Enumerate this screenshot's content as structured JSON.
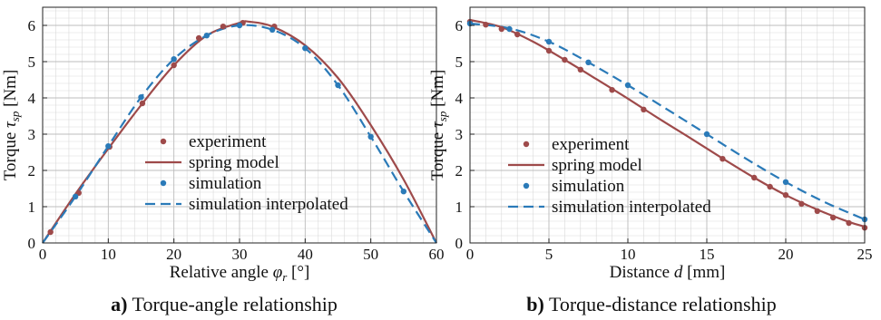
{
  "colors": {
    "experiment": "#9e4a4a",
    "spring_model": "#9e4a4a",
    "simulation": "#2a7ab8",
    "simulation_interpolated": "#2a7ab8"
  },
  "captions": {
    "a_prefix": "a)",
    "a_text": " Torque-angle relationship",
    "b_prefix": "b)",
    "b_text": " Torque-distance relationship"
  },
  "chart_data": [
    {
      "type": "line",
      "panel": "a",
      "xlabel_main": "Relative angle ",
      "xlabel_var": "φ",
      "xlabel_sub": "r",
      "xlabel_unit": " [°]",
      "ylabel_main": "Torque ",
      "ylabel_var": "τ",
      "ylabel_sub": "sp",
      "ylabel_unit": " [Nm]",
      "xlim": [
        0,
        60
      ],
      "ylim": [
        0,
        6.5
      ],
      "xticks": [
        0,
        10,
        20,
        30,
        40,
        50,
        60
      ],
      "yticks": [
        0,
        1,
        2,
        3,
        4,
        5,
        6
      ],
      "grid": true,
      "legend_position": "center",
      "series": [
        {
          "name": "experiment",
          "style": "marker",
          "color": "#9e4a4a",
          "x": [
            1.2,
            5.5,
            10.2,
            15.2,
            20,
            23.8,
            27.5,
            30.5,
            35.3
          ],
          "y": [
            0.3,
            1.38,
            2.65,
            3.85,
            4.9,
            5.65,
            5.97,
            6.07,
            5.97
          ]
        },
        {
          "name": "spring model",
          "style": "solid",
          "color": "#9e4a4a",
          "x": [
            0,
            5,
            10,
            15,
            20,
            25,
            30,
            31.5,
            35,
            40,
            45,
            50,
            55,
            60
          ],
          "y": [
            0,
            1.35,
            2.6,
            3.8,
            4.9,
            5.72,
            6.07,
            6.1,
            5.97,
            5.45,
            4.55,
            3.25,
            1.75,
            0
          ]
        },
        {
          "name": "simulation",
          "style": "marker",
          "color": "#2a7ab8",
          "x": [
            5,
            10,
            15,
            20,
            25,
            30,
            35,
            40,
            45,
            50,
            55
          ],
          "y": [
            1.28,
            2.67,
            4.02,
            5.07,
            5.72,
            6.0,
            5.88,
            5.37,
            4.35,
            2.93,
            1.42
          ]
        },
        {
          "name": "simulation interpolated",
          "style": "dashed",
          "color": "#2a7ab8",
          "x": [
            0,
            5,
            10,
            15,
            20,
            25,
            30,
            35,
            40,
            45,
            50,
            55,
            60
          ],
          "y": [
            0,
            1.28,
            2.67,
            4.02,
            5.07,
            5.72,
            6.0,
            5.88,
            5.37,
            4.35,
            2.93,
            1.42,
            0
          ]
        }
      ]
    },
    {
      "type": "line",
      "panel": "b",
      "xlabel_main": "Distance ",
      "xlabel_var": "d",
      "xlabel_sub": "",
      "xlabel_unit": " [mm]",
      "ylabel_main": "Torque ",
      "ylabel_var": "τ",
      "ylabel_sub": "sp",
      "ylabel_unit": " [Nm]",
      "xlim": [
        0,
        25
      ],
      "ylim": [
        0,
        6.5
      ],
      "xticks": [
        0,
        5,
        10,
        15,
        20,
        25
      ],
      "yticks": [
        0,
        1,
        2,
        3,
        4,
        5,
        6
      ],
      "grid": true,
      "legend_position": "bottom-left",
      "series": [
        {
          "name": "experiment",
          "style": "marker",
          "color": "#9e4a4a",
          "x": [
            0,
            1,
            2,
            3,
            5,
            6,
            7,
            9,
            11,
            16,
            18,
            19,
            20,
            21,
            22,
            23,
            24,
            25
          ],
          "y": [
            6.1,
            6.02,
            5.9,
            5.75,
            5.3,
            5.05,
            4.78,
            4.22,
            3.68,
            2.32,
            1.8,
            1.55,
            1.32,
            1.08,
            0.88,
            0.7,
            0.55,
            0.42
          ]
        },
        {
          "name": "spring model",
          "style": "solid",
          "color": "#9e4a4a",
          "x": [
            0,
            2,
            4,
            6,
            8,
            10,
            12,
            14,
            16,
            18,
            20,
            22,
            24,
            25
          ],
          "y": [
            6.15,
            5.95,
            5.55,
            5.05,
            4.52,
            3.98,
            3.42,
            2.88,
            2.33,
            1.8,
            1.32,
            0.92,
            0.58,
            0.45
          ]
        },
        {
          "name": "simulation",
          "style": "marker",
          "color": "#2a7ab8",
          "x": [
            0,
            2.5,
            5,
            7.5,
            10,
            15,
            20,
            25
          ],
          "y": [
            6.05,
            5.9,
            5.55,
            4.98,
            4.35,
            3.0,
            1.68,
            0.65
          ]
        },
        {
          "name": "simulation interpolated",
          "style": "dashed",
          "color": "#2a7ab8",
          "x": [
            0,
            2.5,
            5,
            7.5,
            10,
            12.5,
            15,
            17.5,
            20,
            22.5,
            25
          ],
          "y": [
            6.05,
            5.92,
            5.55,
            4.98,
            4.35,
            3.68,
            3.0,
            2.32,
            1.68,
            1.12,
            0.65
          ]
        }
      ]
    }
  ]
}
